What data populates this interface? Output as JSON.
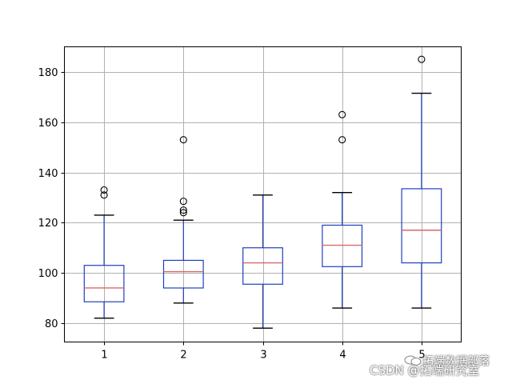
{
  "chart_data": {
    "type": "box",
    "categories": [
      "1",
      "2",
      "3",
      "4",
      "5"
    ],
    "ylim": [
      72.5,
      190
    ],
    "yticks": [
      80,
      100,
      120,
      140,
      160,
      180
    ],
    "grid": true,
    "boxes": [
      {
        "whisker_low": 82,
        "q1": 88.5,
        "median": 94,
        "q3": 103,
        "whisker_high": 123,
        "outliers": [
          131,
          133
        ]
      },
      {
        "whisker_low": 88,
        "q1": 94,
        "median": 100.5,
        "q3": 105,
        "whisker_high": 121,
        "outliers": [
          124,
          125,
          128.5,
          153
        ]
      },
      {
        "whisker_low": 78,
        "q1": 95.5,
        "median": 104,
        "q3": 110,
        "whisker_high": 131,
        "outliers": []
      },
      {
        "whisker_low": 86,
        "q1": 102.5,
        "median": 111,
        "q3": 119,
        "whisker_high": 132,
        "outliers": [
          153,
          163
        ]
      },
      {
        "whisker_low": 86,
        "q1": 104,
        "median": 117,
        "q3": 133.5,
        "whisker_high": 171.5,
        "outliers": [
          185
        ]
      }
    ],
    "colors": {
      "box": "#1f3fbf",
      "median": "#d46a6a",
      "grid": "#b0b0b0",
      "outlier": "#000000"
    }
  },
  "watermark": {
    "line1": "拓端数据部落",
    "line2": "CSDN @拓端研究室"
  }
}
